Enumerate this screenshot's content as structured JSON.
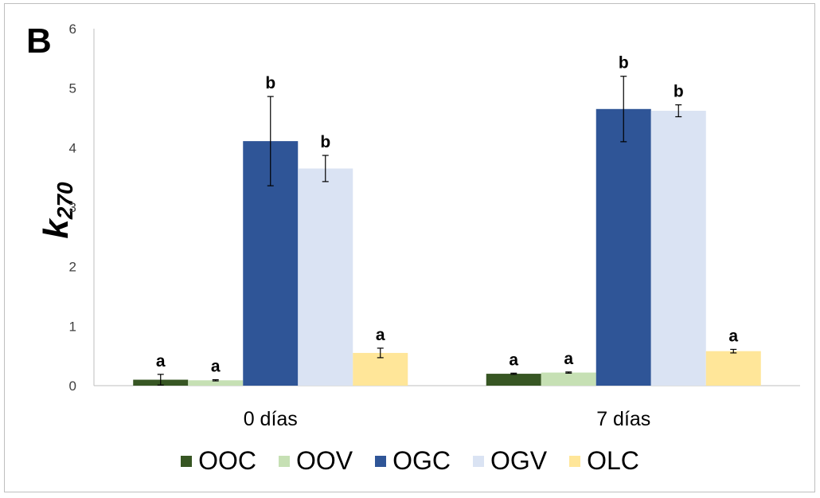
{
  "panel_letter": "B",
  "chart_data": {
    "type": "bar",
    "title": "",
    "xlabel": "",
    "ylabel": "k",
    "ylabel_sub": "270",
    "ylim": [
      0,
      6
    ],
    "yticks": [
      "0",
      "1",
      "2",
      "3",
      "4",
      "5",
      "6"
    ],
    "grid": false,
    "legend_position": "bottom",
    "categories": [
      "0 días",
      "7 días"
    ],
    "series": [
      {
        "name": "OOC",
        "color": "#375623",
        "values": [
          0.1,
          0.2
        ],
        "errors": [
          0.09,
          0.01
        ],
        "labels": [
          "a",
          "a"
        ]
      },
      {
        "name": "OOV",
        "color": "#c6e0b4",
        "values": [
          0.09,
          0.22
        ],
        "errors": [
          0.01,
          0.01
        ],
        "labels": [
          "a",
          "a"
        ]
      },
      {
        "name": "OGC",
        "color": "#2f5597",
        "values": [
          4.11,
          4.65
        ],
        "errors": [
          0.75,
          0.55
        ],
        "labels": [
          "b",
          "b"
        ]
      },
      {
        "name": "OGV",
        "color": "#dae3f3",
        "values": [
          3.65,
          4.62
        ],
        "errors": [
          0.22,
          0.1
        ],
        "labels": [
          "b",
          "b"
        ]
      },
      {
        "name": "OLC",
        "color": "#ffe699",
        "values": [
          0.55,
          0.58
        ],
        "errors": [
          0.08,
          0.03
        ],
        "labels": [
          "a",
          "a"
        ]
      }
    ]
  }
}
